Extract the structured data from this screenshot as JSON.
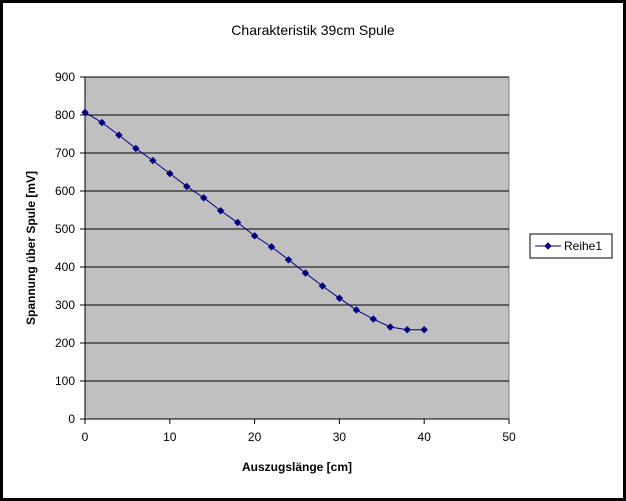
{
  "chart_data": {
    "type": "line",
    "title": "Charakteristik 39cm Spule",
    "xlabel": "Auszugslänge [cm]",
    "ylabel": "Spannung über Spule [mV]",
    "xlim": [
      0,
      50
    ],
    "ylim": [
      0,
      900
    ],
    "x_ticks": [
      0,
      10,
      20,
      30,
      40,
      50
    ],
    "y_ticks": [
      0,
      100,
      200,
      300,
      400,
      500,
      600,
      700,
      800,
      900
    ],
    "grid": "horizontal",
    "legend_position": "right",
    "plot_background": "#c0c0c0",
    "series": [
      {
        "name": "Reihe1",
        "color": "#000080",
        "x": [
          0,
          2,
          4,
          6,
          8,
          10,
          12,
          14,
          16,
          18,
          20,
          22,
          24,
          26,
          28,
          30,
          32,
          34,
          36,
          38,
          40
        ],
        "y": [
          807,
          780,
          747,
          712,
          680,
          646,
          612,
          582,
          548,
          517,
          482,
          453,
          419,
          384,
          350,
          318,
          287,
          263,
          242,
          235,
          235
        ]
      }
    ]
  }
}
